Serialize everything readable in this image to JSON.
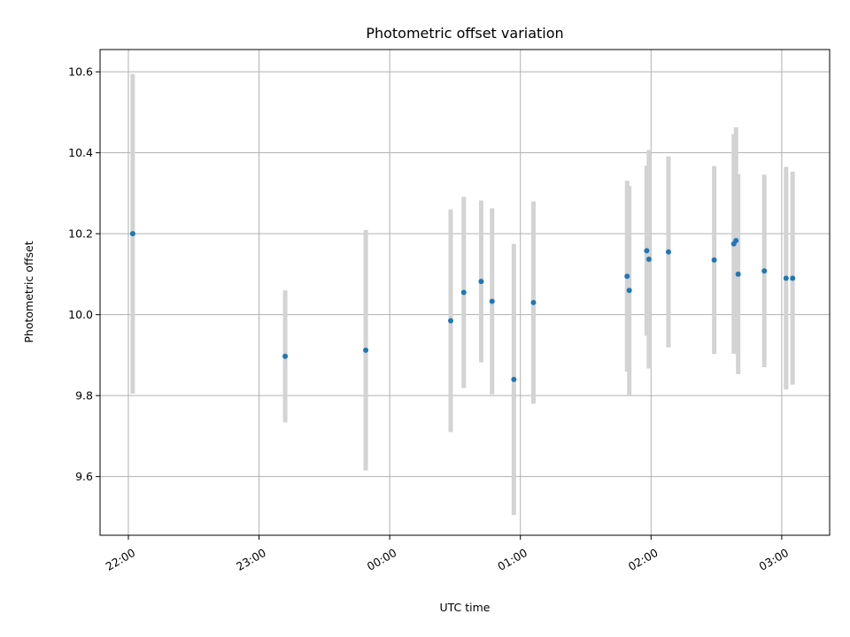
{
  "chart_data": {
    "type": "scatter",
    "title": "Photometric offset variation",
    "xlabel": "UTC time",
    "ylabel": "Photometric offset",
    "x_ticks": [
      "22:00",
      "23:00",
      "00:00",
      "01:00",
      "02:00",
      "03:00"
    ],
    "y_ticks": [
      "9.6",
      "9.8",
      "10.0",
      "10.2",
      "10.4",
      "10.6"
    ],
    "xlim": [
      "21:47",
      "03:22"
    ],
    "ylim": [
      9.455,
      10.655
    ],
    "grid": true,
    "colors": {
      "point": "#1f77b4",
      "errorbar": "#d3d3d3"
    },
    "series": [
      {
        "x": [
          "22:02",
          "23:12",
          "23:49",
          "00:28",
          "00:34",
          "00:42",
          "00:47",
          "00:57",
          "01:06",
          "01:49",
          "01:50",
          "01:58",
          "01:59",
          "02:08",
          "02:29",
          "02:38",
          "02:39",
          "02:40",
          "02:52",
          "03:02",
          "03:05"
        ],
        "y": [
          10.2,
          9.897,
          9.912,
          9.985,
          10.055,
          10.082,
          10.033,
          9.84,
          10.03,
          10.095,
          10.06,
          10.158,
          10.137,
          10.155,
          10.135,
          10.175,
          10.183,
          10.1,
          10.108,
          10.09,
          10.09
        ],
        "err": [
          0.395,
          0.163,
          0.297,
          0.275,
          0.236,
          0.2,
          0.23,
          0.335,
          0.25,
          0.236,
          0.258,
          0.21,
          0.27,
          0.236,
          0.232,
          0.271,
          0.28,
          0.247,
          0.238,
          0.275,
          0.263
        ]
      }
    ]
  }
}
